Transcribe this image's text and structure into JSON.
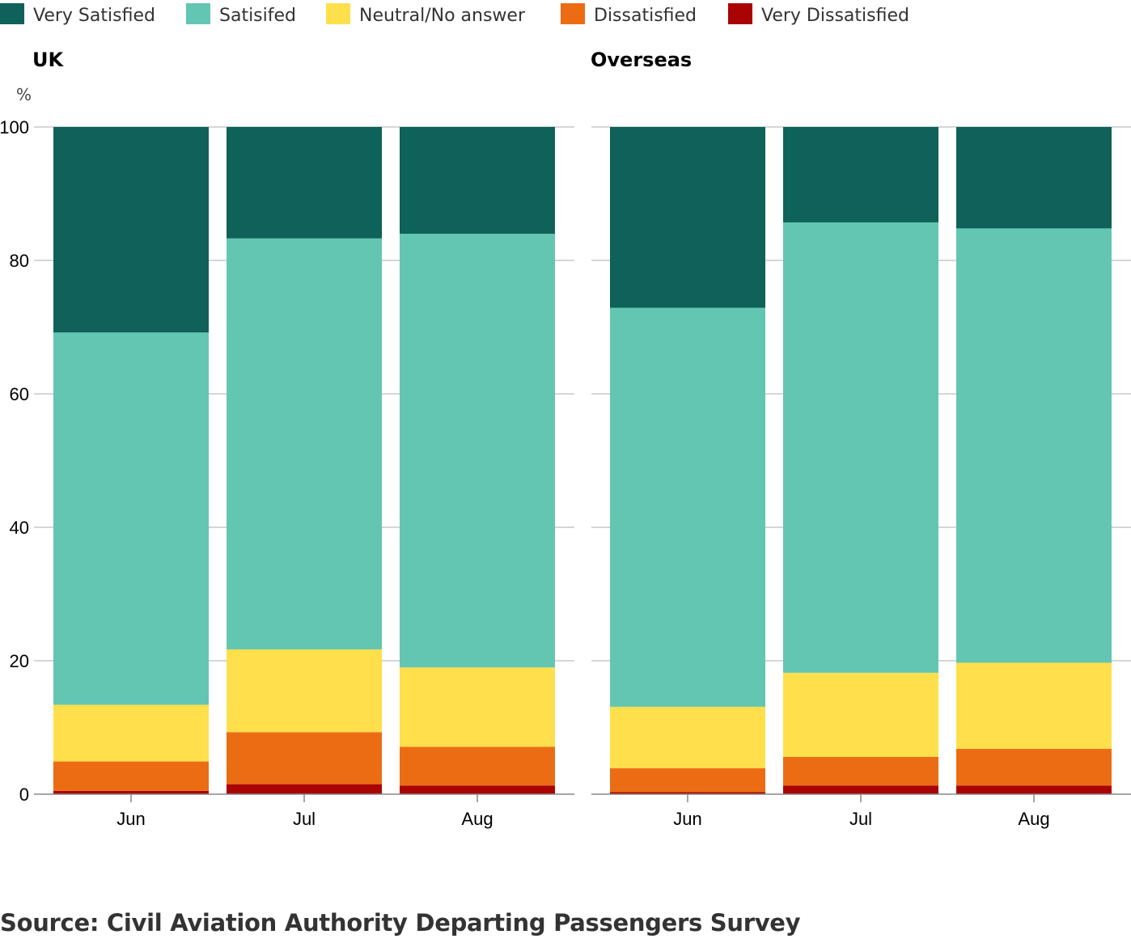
{
  "chart_data": {
    "type": "bar",
    "stacked": true,
    "unit": "%",
    "ylim": [
      0,
      100
    ],
    "yticks": [
      0,
      20,
      40,
      60,
      80,
      100
    ],
    "grid": true,
    "legend_position": "top-left",
    "categories": [
      "Jun",
      "Jul",
      "Aug"
    ],
    "legend": [
      {
        "name": "Very Satisfied",
        "color": "#0e6259"
      },
      {
        "name": "Satisifed",
        "color": "#62c6b2"
      },
      {
        "name": "Neutral/No answer",
        "color": "#ffdf4b"
      },
      {
        "name": "Dissatisfied",
        "color": "#ec6c14"
      },
      {
        "name": "Very Dissatisfied",
        "color": "#a90403"
      }
    ],
    "panels": [
      {
        "title": "UK",
        "series": [
          {
            "name": "Very Dissatisfied",
            "values": [
              0.5,
              1.5,
              1.3
            ]
          },
          {
            "name": "Dissatisfied",
            "values": [
              4.4,
              7.8,
              5.8
            ]
          },
          {
            "name": "Neutral/No answer",
            "values": [
              8.5,
              12.4,
              11.9
            ]
          },
          {
            "name": "Satisifed",
            "values": [
              55.8,
              61.6,
              65.0
            ]
          },
          {
            "name": "Very Satisfied",
            "values": [
              30.8,
              16.7,
              16.0
            ]
          }
        ]
      },
      {
        "title": "Overseas",
        "series": [
          {
            "name": "Very Dissatisfied",
            "values": [
              0.3,
              1.3,
              1.3
            ]
          },
          {
            "name": "Dissatisfied",
            "values": [
              3.6,
              4.3,
              5.5
            ]
          },
          {
            "name": "Neutral/No answer",
            "values": [
              9.2,
              12.6,
              12.9
            ]
          },
          {
            "name": "Satisifed",
            "values": [
              59.8,
              67.5,
              65.1
            ]
          },
          {
            "name": "Very Satisfied",
            "values": [
              27.1,
              14.3,
              15.2
            ]
          }
        ]
      }
    ]
  },
  "source": "Source: Civil Aviation Authority Departing Passengers Survey"
}
